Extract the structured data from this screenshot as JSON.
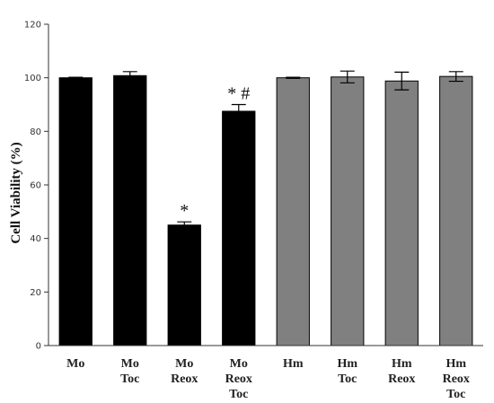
{
  "chart_data": {
    "type": "bar",
    "ylabel": "Cell Viability (%)",
    "ylim": [
      0,
      120
    ],
    "yticks": [
      0,
      20,
      40,
      60,
      80,
      100,
      120
    ],
    "grid": false,
    "categories": [
      [
        "Mo"
      ],
      [
        "Mo",
        "Toc"
      ],
      [
        "Mo",
        "Reox"
      ],
      [
        "Mo",
        "Reox",
        "Toc"
      ],
      [
        "Hm"
      ],
      [
        "Hm",
        "Toc"
      ],
      [
        "Hm",
        "Reox"
      ],
      [
        "Hm",
        "Reox",
        "Toc"
      ]
    ],
    "values": [
      100,
      100.8,
      45,
      87.5,
      100,
      100.3,
      98.8,
      100.5
    ],
    "errors": [
      0.2,
      1.5,
      1.2,
      2.5,
      0.2,
      2.2,
      3.3,
      1.8
    ],
    "colors": [
      "#000000",
      "#000000",
      "#000000",
      "#000000",
      "#808080",
      "#808080",
      "#808080",
      "#808080"
    ],
    "annotations": [
      {
        "bar": 2,
        "text": "*"
      },
      {
        "bar": 3,
        "text": "* #"
      }
    ]
  }
}
